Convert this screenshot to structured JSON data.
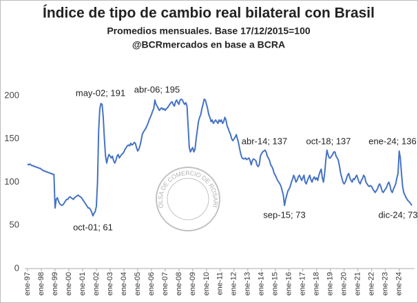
{
  "chart_data": {
    "type": "line",
    "title": "Índice de tipo de cambio real bilateral con Brasil",
    "subtitle": "Promedios mensuales. Base 17/12/2015=100",
    "source": "@BCRmercados en base a BCRA",
    "watermark": "BOLSA DE COMERCIO DE ROSARIO",
    "color": "#4472c4",
    "ylim": [
      0,
      200
    ],
    "yticks": [
      0,
      50,
      100,
      150,
      200
    ],
    "grid": false,
    "annotations": [
      "may-02; 191",
      "abr-06; 195",
      "oct-01; 61",
      "abr-14; 137",
      "sep-15; 73",
      "oct-18; 137",
      "ene-24; 136",
      "dic-24; 73"
    ],
    "categories": [
      "ene-97",
      null,
      null,
      null,
      null,
      null,
      null,
      null,
      null,
      null,
      null,
      null,
      "ene-98",
      null,
      null,
      null,
      null,
      null,
      null,
      null,
      null,
      null,
      null,
      null,
      "ene-99",
      null,
      null,
      null,
      null,
      null,
      null,
      null,
      null,
      null,
      null,
      null,
      "ene-00",
      null,
      null,
      null,
      null,
      null,
      null,
      null,
      null,
      null,
      null,
      null,
      "ene-01",
      null,
      null,
      null,
      null,
      null,
      null,
      null,
      null,
      null,
      null,
      null,
      "ene-02",
      null,
      null,
      null,
      null,
      null,
      null,
      null,
      null,
      null,
      null,
      null,
      "ene-03",
      null,
      null,
      null,
      null,
      null,
      null,
      null,
      null,
      null,
      null,
      null,
      "ene-04",
      null,
      null,
      null,
      null,
      null,
      null,
      null,
      null,
      null,
      null,
      null,
      "ene-05",
      null,
      null,
      null,
      null,
      null,
      null,
      null,
      null,
      null,
      null,
      null,
      "ene-06",
      null,
      null,
      null,
      null,
      null,
      null,
      null,
      null,
      null,
      null,
      null,
      "ene-07",
      null,
      null,
      null,
      null,
      null,
      null,
      null,
      null,
      null,
      null,
      null,
      "ene-08",
      null,
      null,
      null,
      null,
      null,
      null,
      null,
      null,
      null,
      null,
      null,
      "ene-09",
      null,
      null,
      null,
      null,
      null,
      null,
      null,
      null,
      null,
      null,
      null,
      "ene-10",
      null,
      null,
      null,
      null,
      null,
      null,
      null,
      null,
      null,
      null,
      null,
      "ene-11",
      null,
      null,
      null,
      null,
      null,
      null,
      null,
      null,
      null,
      null,
      null,
      "ene-12",
      null,
      null,
      null,
      null,
      null,
      null,
      null,
      null,
      null,
      null,
      null,
      "ene-13",
      null,
      null,
      null,
      null,
      null,
      null,
      null,
      null,
      null,
      null,
      null,
      "ene-14",
      null,
      null,
      null,
      null,
      null,
      null,
      null,
      null,
      null,
      null,
      null,
      "ene-15",
      null,
      null,
      null,
      null,
      null,
      null,
      null,
      null,
      null,
      null,
      null,
      "ene-16",
      null,
      null,
      null,
      null,
      null,
      null,
      null,
      null,
      null,
      null,
      null,
      "ene-17",
      null,
      null,
      null,
      null,
      null,
      null,
      null,
      null,
      null,
      null,
      null,
      "ene-18",
      null,
      null,
      null,
      null,
      null,
      null,
      null,
      null,
      null,
      null,
      null,
      "ene-19",
      null,
      null,
      null,
      null,
      null,
      null,
      null,
      null,
      null,
      null,
      null,
      "ene-20",
      null,
      null,
      null,
      null,
      null,
      null,
      null,
      null,
      null,
      null,
      null,
      "ene-21",
      null,
      null,
      null,
      null,
      null,
      null,
      null,
      null,
      null,
      null,
      null,
      "ene-22",
      null,
      null,
      null,
      null,
      null,
      null,
      null,
      null,
      null,
      null,
      null,
      "ene-23",
      null,
      null,
      null,
      null,
      null,
      null,
      null,
      null,
      null,
      null,
      null,
      "ene-24",
      null,
      null,
      null,
      null,
      null,
      null,
      null,
      null,
      null,
      null,
      null
    ],
    "values": [
      121,
      120,
      121,
      120,
      119,
      119,
      118,
      118,
      117,
      117,
      116,
      116,
      115,
      114,
      113,
      113,
      112,
      112,
      111,
      111,
      110,
      110,
      109,
      109,
      70,
      80,
      82,
      78,
      75,
      74,
      73,
      74,
      76,
      78,
      80,
      80,
      82,
      83,
      82,
      81,
      80,
      82,
      83,
      84,
      85,
      84,
      83,
      82,
      80,
      78,
      76,
      74,
      72,
      70,
      70,
      68,
      65,
      61,
      64,
      66,
      72,
      100,
      160,
      185,
      191,
      190,
      175,
      150,
      130,
      122,
      128,
      132,
      130,
      128,
      130,
      125,
      122,
      125,
      130,
      132,
      128,
      130,
      132,
      133,
      135,
      138,
      140,
      142,
      143,
      142,
      145,
      143,
      144,
      146,
      145,
      140,
      136,
      138,
      142,
      148,
      155,
      158,
      160,
      162,
      165,
      168,
      172,
      175,
      178,
      182,
      185,
      195,
      190,
      188,
      185,
      183,
      185,
      186,
      184,
      185,
      183,
      185,
      186,
      188,
      190,
      192,
      193,
      190,
      188,
      193,
      195,
      192,
      190,
      195,
      196,
      195,
      192,
      190,
      192,
      188,
      165,
      140,
      135,
      138,
      140,
      135,
      138,
      150,
      160,
      170,
      175,
      178,
      185,
      190,
      196,
      195,
      190,
      185,
      178,
      175,
      170,
      172,
      168,
      170,
      172,
      170,
      168,
      172,
      170,
      172,
      168,
      170,
      175,
      172,
      165,
      162,
      158,
      155,
      150,
      148,
      150,
      152,
      155,
      150,
      145,
      138,
      132,
      128,
      127,
      127,
      128,
      126,
      127,
      128,
      125,
      120,
      125,
      127,
      126,
      125,
      120,
      118,
      120,
      130,
      133,
      135,
      136,
      137,
      135,
      130,
      128,
      125,
      120,
      118,
      115,
      110,
      108,
      105,
      102,
      100,
      98,
      95,
      90,
      85,
      73,
      80,
      85,
      90,
      92,
      95,
      100,
      103,
      108,
      105,
      100,
      102,
      106,
      108,
      105,
      102,
      105,
      108,
      100,
      98,
      102,
      105,
      108,
      103,
      100,
      104,
      106,
      103,
      105,
      102,
      108,
      112,
      115,
      105,
      100,
      110,
      125,
      137,
      132,
      128,
      128,
      130,
      132,
      135,
      135,
      130,
      128,
      125,
      118,
      110,
      105,
      100,
      98,
      100,
      104,
      108,
      110,
      105,
      102,
      100,
      104,
      103,
      106,
      108,
      104,
      100,
      98,
      102,
      104,
      108,
      106,
      100,
      98,
      96,
      95,
      96,
      95,
      92,
      90,
      88,
      90,
      92,
      96,
      98,
      95,
      90,
      88,
      90,
      92,
      94,
      98,
      100,
      96,
      90,
      88,
      92,
      95,
      98,
      105,
      110,
      136,
      128,
      110,
      95,
      88,
      85,
      82,
      80,
      78,
      77,
      75,
      73
    ]
  }
}
